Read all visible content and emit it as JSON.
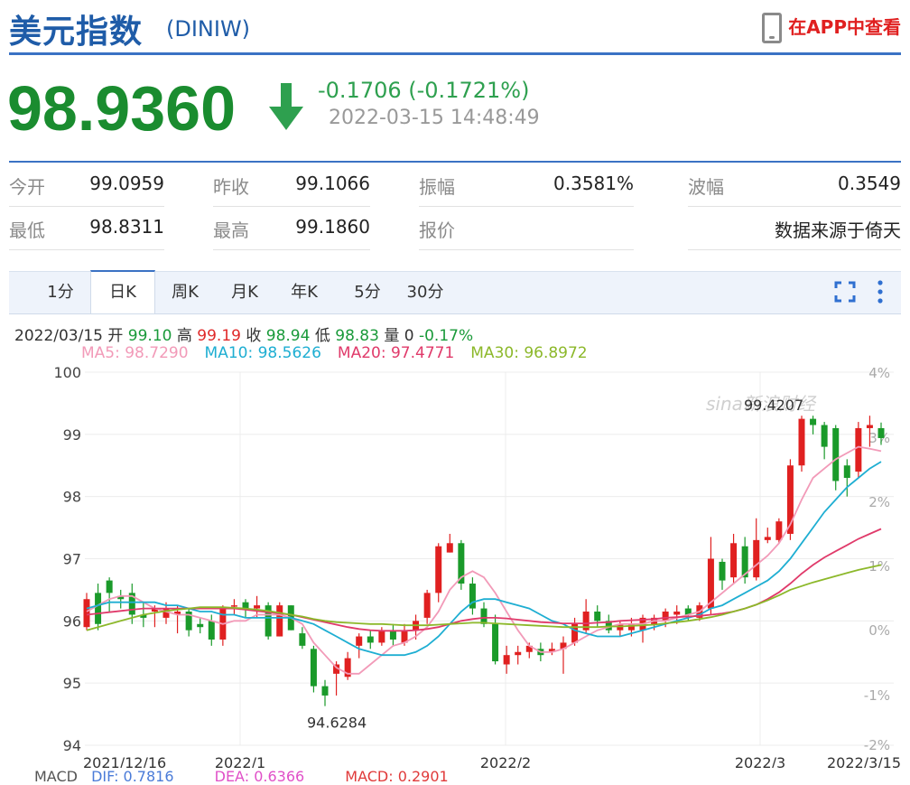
{
  "header": {
    "title": "美元指数",
    "symbol": "(DINIW)",
    "app_link": "在APP中查看"
  },
  "quote": {
    "price": "98.9360",
    "change": "-0.1706 (-0.1721%)",
    "timestamp": "2022-03-15 14:48:49",
    "direction": "down",
    "price_color": "#1a8c2f",
    "stats": [
      {
        "label": "今开",
        "value": "99.0959"
      },
      {
        "label": "昨收",
        "value": "99.1066"
      },
      {
        "label": "振幅",
        "value": "0.3581%"
      },
      {
        "label": "波幅",
        "value": "0.3549"
      },
      {
        "label": "最低",
        "value": "98.8311"
      },
      {
        "label": "最高",
        "value": "99.1860"
      },
      {
        "label": "报价",
        "value": "数据来源于倚天"
      }
    ]
  },
  "tabs": [
    {
      "label": "1分",
      "active": false
    },
    {
      "label": "日K",
      "active": true
    },
    {
      "label": "周K",
      "active": false
    },
    {
      "label": "月K",
      "active": false
    },
    {
      "label": "年K",
      "active": false
    },
    {
      "label": "5分",
      "active": false
    },
    {
      "label": "30分",
      "active": false
    }
  ],
  "kline_info": {
    "date": "2022/03/15",
    "open_label": "开",
    "open": "99.10",
    "high_label": "高",
    "high": "99.19",
    "close_label": "收",
    "close": "98.94",
    "low_label": "低",
    "low": "98.83",
    "volume_label": "量",
    "volume": "0",
    "pct": "-0.17%"
  },
  "ma_legend": [
    {
      "text": "MA5: 98.7290",
      "color": "#f29ab8"
    },
    {
      "text": "MA10: 98.5626",
      "color": "#1eaed2"
    },
    {
      "text": "MA20: 97.4771",
      "color": "#e03a6a"
    },
    {
      "text": "MA30: 96.8972",
      "color": "#8cb82a"
    }
  ],
  "macd_partial": {
    "label": "MACD",
    "dif": "DIF: 0.7816",
    "dea": "DEA: 0.6366",
    "macd": "MACD: 0.2901"
  },
  "chart_data": {
    "type": "candlestick",
    "y_left_ticks": [
      "100",
      "99",
      "98",
      "97",
      "96",
      "95",
      "94"
    ],
    "y_right_ticks": [
      "4%",
      "3%",
      "2%",
      "1%",
      "0%",
      "-1%",
      "-2%"
    ],
    "ylim": [
      94,
      100
    ],
    "x_tick_labels": [
      "2021/12/16",
      "2022/1",
      "2022/2",
      "2022/3",
      "2022/3/15"
    ],
    "annotations": {
      "max": "99.4207",
      "min": "94.6284"
    },
    "watermark": "sina新浪财经",
    "up_color": "#e02020",
    "down_color": "#1a9a2a",
    "candles": [
      {
        "o": 95.9,
        "c": 96.35,
        "h": 96.45,
        "l": 95.85
      },
      {
        "o": 96.45,
        "c": 95.95,
        "h": 96.6,
        "l": 95.85
      },
      {
        "o": 96.65,
        "c": 96.45,
        "h": 96.7,
        "l": 96.15
      },
      {
        "o": 96.4,
        "c": 96.35,
        "h": 96.5,
        "l": 96.2
      },
      {
        "o": 96.45,
        "c": 96.1,
        "h": 96.6,
        "l": 95.95
      },
      {
        "o": 96.1,
        "c": 96.05,
        "h": 96.3,
        "l": 95.9
      },
      {
        "o": 96.15,
        "c": 96.2,
        "h": 96.25,
        "l": 95.9
      },
      {
        "o": 96.05,
        "c": 96.2,
        "h": 96.3,
        "l": 95.95
      },
      {
        "o": 96.1,
        "c": 96.15,
        "h": 96.25,
        "l": 95.8
      },
      {
        "o": 96.15,
        "c": 95.85,
        "h": 96.2,
        "l": 95.75
      },
      {
        "o": 95.95,
        "c": 95.9,
        "h": 96.05,
        "l": 95.8
      },
      {
        "o": 96.0,
        "c": 95.7,
        "h": 96.1,
        "l": 95.6
      },
      {
        "o": 95.7,
        "c": 96.2,
        "h": 96.25,
        "l": 95.6
      },
      {
        "o": 96.25,
        "c": 96.25,
        "h": 96.35,
        "l": 96.1
      },
      {
        "o": 96.3,
        "c": 96.2,
        "h": 96.35,
        "l": 96.05
      },
      {
        "o": 96.2,
        "c": 96.25,
        "h": 96.4,
        "l": 96.05
      },
      {
        "o": 96.25,
        "c": 95.75,
        "h": 96.3,
        "l": 95.7
      },
      {
        "o": 95.75,
        "c": 96.25,
        "h": 96.3,
        "l": 95.75
      },
      {
        "o": 96.25,
        "c": 95.85,
        "h": 96.25,
        "l": 95.85
      },
      {
        "o": 95.8,
        "c": 95.6,
        "h": 95.9,
        "l": 95.55
      },
      {
        "o": 95.55,
        "c": 94.95,
        "h": 95.6,
        "l": 94.85
      },
      {
        "o": 94.95,
        "c": 94.8,
        "h": 95.05,
        "l": 94.63
      },
      {
        "o": 95.15,
        "c": 95.3,
        "h": 95.35,
        "l": 94.8
      },
      {
        "o": 95.1,
        "c": 95.4,
        "h": 95.5,
        "l": 95.05
      },
      {
        "o": 95.6,
        "c": 95.75,
        "h": 95.8,
        "l": 95.4
      },
      {
        "o": 95.75,
        "c": 95.65,
        "h": 95.85,
        "l": 95.55
      },
      {
        "o": 95.65,
        "c": 95.85,
        "h": 95.9,
        "l": 95.6
      },
      {
        "o": 95.85,
        "c": 95.7,
        "h": 95.95,
        "l": 95.6
      },
      {
        "o": 95.65,
        "c": 95.85,
        "h": 95.95,
        "l": 95.6
      },
      {
        "o": 95.85,
        "c": 96.0,
        "h": 96.1,
        "l": 95.7
      },
      {
        "o": 96.05,
        "c": 96.45,
        "h": 96.5,
        "l": 95.95
      },
      {
        "o": 96.45,
        "c": 97.2,
        "h": 97.25,
        "l": 96.3
      },
      {
        "o": 97.1,
        "c": 97.25,
        "h": 97.4,
        "l": 97.1
      },
      {
        "o": 97.25,
        "c": 96.6,
        "h": 97.3,
        "l": 96.5
      },
      {
        "o": 96.6,
        "c": 96.2,
        "h": 96.7,
        "l": 96.1
      },
      {
        "o": 96.2,
        "c": 95.95,
        "h": 96.3,
        "l": 95.9
      },
      {
        "o": 95.95,
        "c": 95.35,
        "h": 96.1,
        "l": 95.3
      },
      {
        "o": 95.3,
        "c": 95.45,
        "h": 95.6,
        "l": 95.15
      },
      {
        "o": 95.45,
        "c": 95.5,
        "h": 95.6,
        "l": 95.3
      },
      {
        "o": 95.5,
        "c": 95.6,
        "h": 95.65,
        "l": 95.4
      },
      {
        "o": 95.55,
        "c": 95.45,
        "h": 95.65,
        "l": 95.35
      },
      {
        "o": 95.5,
        "c": 95.55,
        "h": 95.65,
        "l": 95.45
      },
      {
        "o": 95.55,
        "c": 95.65,
        "h": 95.75,
        "l": 95.15
      },
      {
        "o": 95.65,
        "c": 95.95,
        "h": 96.05,
        "l": 95.6
      },
      {
        "o": 95.85,
        "c": 96.15,
        "h": 96.35,
        "l": 95.8
      },
      {
        "o": 96.15,
        "c": 96.0,
        "h": 96.25,
        "l": 95.9
      },
      {
        "o": 96.0,
        "c": 95.85,
        "h": 96.1,
        "l": 95.8
      },
      {
        "o": 95.85,
        "c": 95.95,
        "h": 96.0,
        "l": 95.75
      },
      {
        "o": 95.85,
        "c": 95.95,
        "h": 96.05,
        "l": 95.75
      },
      {
        "o": 95.85,
        "c": 96.05,
        "h": 96.1,
        "l": 95.65
      },
      {
        "o": 95.95,
        "c": 96.05,
        "h": 96.1,
        "l": 95.85
      },
      {
        "o": 96.0,
        "c": 96.15,
        "h": 96.2,
        "l": 95.9
      },
      {
        "o": 96.1,
        "c": 96.15,
        "h": 96.25,
        "l": 95.95
      },
      {
        "o": 96.2,
        "c": 96.1,
        "h": 96.25,
        "l": 96.0
      },
      {
        "o": 96.05,
        "c": 96.25,
        "h": 96.3,
        "l": 96.0
      },
      {
        "o": 96.2,
        "c": 97.0,
        "h": 97.35,
        "l": 96.1
      },
      {
        "o": 96.95,
        "c": 96.65,
        "h": 97.0,
        "l": 96.5
      },
      {
        "o": 96.7,
        "c": 97.25,
        "h": 97.4,
        "l": 96.6
      },
      {
        "o": 97.2,
        "c": 96.7,
        "h": 97.35,
        "l": 96.6
      },
      {
        "o": 96.7,
        "c": 97.3,
        "h": 97.65,
        "l": 96.65
      },
      {
        "o": 97.3,
        "c": 97.35,
        "h": 97.5,
        "l": 97.25
      },
      {
        "o": 97.3,
        "c": 97.6,
        "h": 97.65,
        "l": 97.25
      },
      {
        "o": 97.4,
        "c": 98.5,
        "h": 98.6,
        "l": 97.3
      },
      {
        "o": 98.5,
        "c": 99.25,
        "h": 99.3,
        "l": 98.4
      },
      {
        "o": 99.25,
        "c": 99.15,
        "h": 99.3,
        "l": 99.0
      },
      {
        "o": 99.15,
        "c": 98.8,
        "h": 99.2,
        "l": 98.6
      },
      {
        "o": 99.1,
        "c": 98.25,
        "h": 99.15,
        "l": 98.1
      },
      {
        "o": 98.5,
        "c": 98.3,
        "h": 98.6,
        "l": 98.0
      },
      {
        "o": 98.4,
        "c": 99.1,
        "h": 99.2,
        "l": 98.3
      },
      {
        "o": 99.1,
        "c": 99.15,
        "h": 99.3,
        "l": 98.8
      },
      {
        "o": 99.1,
        "c": 98.94,
        "h": 99.19,
        "l": 98.83
      }
    ],
    "ma_series": [
      {
        "name": "MA5",
        "color": "#f29ab8",
        "values": [
          96.15,
          96.25,
          96.35,
          96.4,
          96.4,
          96.3,
          96.2,
          96.15,
          96.1,
          96.1,
          96.05,
          96.0,
          95.95,
          96.0,
          96.0,
          96.1,
          96.1,
          96.1,
          96.05,
          95.95,
          95.65,
          95.45,
          95.25,
          95.15,
          95.15,
          95.3,
          95.45,
          95.6,
          95.65,
          95.75,
          95.9,
          96.15,
          96.5,
          96.7,
          96.8,
          96.7,
          96.45,
          96.15,
          95.85,
          95.6,
          95.5,
          95.5,
          95.55,
          95.65,
          95.75,
          95.85,
          95.9,
          95.95,
          95.95,
          95.95,
          96.0,
          96.0,
          96.05,
          96.1,
          96.15,
          96.3,
          96.45,
          96.6,
          96.75,
          96.9,
          97.05,
          97.25,
          97.55,
          97.95,
          98.3,
          98.45,
          98.6,
          98.7,
          98.8,
          98.77,
          98.73
        ]
      },
      {
        "name": "MA10",
        "color": "#1eaed2",
        "values": [
          96.2,
          96.25,
          96.3,
          96.3,
          96.3,
          96.3,
          96.3,
          96.25,
          96.25,
          96.2,
          96.15,
          96.15,
          96.1,
          96.1,
          96.05,
          96.05,
          96.05,
          96.05,
          96.05,
          96.0,
          95.95,
          95.85,
          95.75,
          95.65,
          95.55,
          95.5,
          95.45,
          95.45,
          95.45,
          95.5,
          95.6,
          95.75,
          95.95,
          96.15,
          96.3,
          96.35,
          96.35,
          96.3,
          96.25,
          96.2,
          96.1,
          96.0,
          95.95,
          95.85,
          95.8,
          95.75,
          95.75,
          95.75,
          95.8,
          95.85,
          95.9,
          95.95,
          96.0,
          96.05,
          96.1,
          96.2,
          96.25,
          96.35,
          96.45,
          96.55,
          96.65,
          96.8,
          97.0,
          97.25,
          97.5,
          97.75,
          97.95,
          98.15,
          98.3,
          98.45,
          98.56
        ]
      },
      {
        "name": "MA20",
        "color": "#e03a6a",
        "values": [
          96.1,
          96.12,
          96.14,
          96.16,
          96.18,
          96.2,
          96.2,
          96.2,
          96.2,
          96.2,
          96.2,
          96.2,
          96.2,
          96.2,
          96.18,
          96.16,
          96.14,
          96.12,
          96.1,
          96.06,
          96.02,
          95.98,
          95.94,
          95.9,
          95.87,
          95.85,
          95.84,
          95.84,
          95.84,
          95.85,
          95.87,
          95.9,
          95.95,
          96.0,
          96.03,
          96.05,
          96.05,
          96.04,
          96.02,
          96.0,
          95.98,
          95.97,
          95.96,
          95.96,
          95.96,
          95.97,
          95.98,
          96.0,
          96.01,
          96.02,
          96.03,
          96.05,
          96.06,
          96.07,
          96.08,
          96.1,
          96.12,
          96.15,
          96.2,
          96.26,
          96.35,
          96.46,
          96.6,
          96.76,
          96.9,
          97.02,
          97.12,
          97.22,
          97.32,
          97.4,
          97.48
        ]
      },
      {
        "name": "MA30",
        "color": "#8cb82a",
        "values": [
          95.85,
          95.9,
          95.95,
          96.0,
          96.05,
          96.1,
          96.13,
          96.16,
          96.18,
          96.2,
          96.22,
          96.22,
          96.22,
          96.21,
          96.2,
          96.18,
          96.16,
          96.13,
          96.1,
          96.07,
          96.03,
          96.0,
          95.98,
          95.97,
          95.96,
          95.95,
          95.95,
          95.94,
          95.93,
          95.93,
          95.93,
          95.94,
          95.95,
          95.96,
          95.97,
          95.97,
          95.96,
          95.95,
          95.94,
          95.93,
          95.92,
          95.91,
          95.9,
          95.9,
          95.9,
          95.9,
          95.91,
          95.91,
          95.92,
          95.93,
          95.94,
          95.96,
          95.98,
          96.0,
          96.03,
          96.06,
          96.1,
          96.15,
          96.2,
          96.26,
          96.33,
          96.41,
          96.5,
          96.56,
          96.62,
          96.67,
          96.72,
          96.77,
          96.82,
          96.86,
          96.9
        ]
      }
    ]
  }
}
